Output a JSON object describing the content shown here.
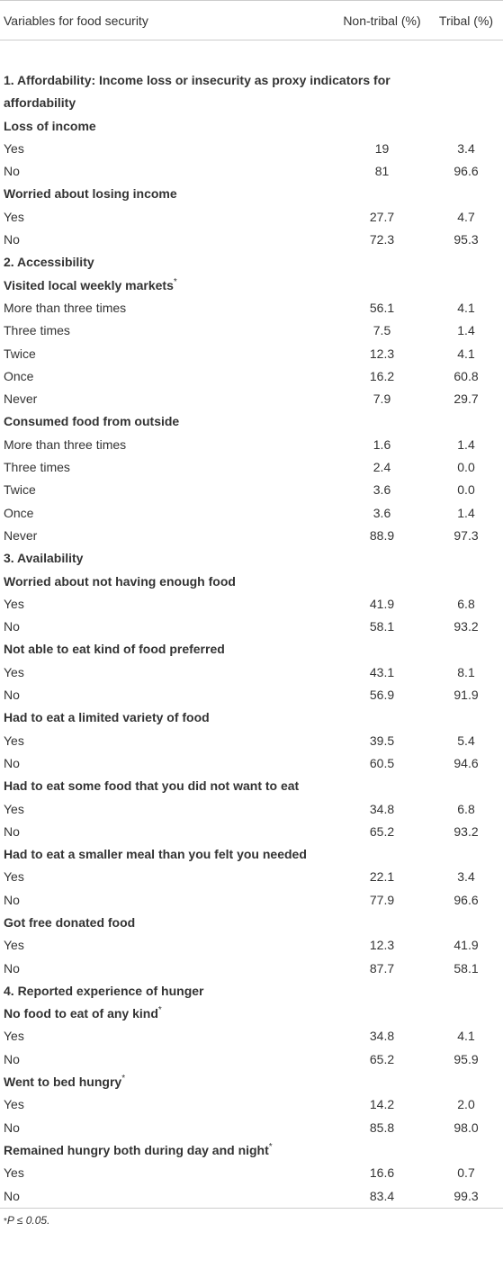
{
  "table": {
    "header": [
      "Variables for food security",
      "Non-tribal (%)",
      "Tribal (%)"
    ],
    "rows": [
      {
        "section": "1. Affordability: Income loss or insecurity as proxy indicators for affordability"
      },
      {
        "heading": "Loss of income"
      },
      {
        "label": "Yes",
        "non_tribal": "19",
        "tribal": "3.4"
      },
      {
        "label": "No",
        "non_tribal": "81",
        "tribal": "96.6"
      },
      {
        "heading": "Worried about losing income"
      },
      {
        "label": "Yes",
        "non_tribal": "27.7",
        "tribal": "4.7"
      },
      {
        "label": "No",
        "non_tribal": "72.3",
        "tribal": "95.3"
      },
      {
        "section": "2. Accessibility"
      },
      {
        "heading": "Visited local weekly markets",
        "sup": "*"
      },
      {
        "label": "More than three times",
        "non_tribal": "56.1",
        "tribal": "4.1"
      },
      {
        "label": "Three times",
        "non_tribal": "7.5",
        "tribal": "1.4"
      },
      {
        "label": "Twice",
        "non_tribal": "12.3",
        "tribal": "4.1"
      },
      {
        "label": "Once",
        "non_tribal": "16.2",
        "tribal": "60.8"
      },
      {
        "label": "Never",
        "non_tribal": "7.9",
        "tribal": "29.7"
      },
      {
        "heading": "Consumed food from outside"
      },
      {
        "label": "More than three times",
        "non_tribal": "1.6",
        "tribal": "1.4"
      },
      {
        "label": "Three times",
        "non_tribal": "2.4",
        "tribal": "0.0"
      },
      {
        "label": "Twice",
        "non_tribal": "3.6",
        "tribal": "0.0"
      },
      {
        "label": "Once",
        "non_tribal": "3.6",
        "tribal": "1.4"
      },
      {
        "label": "Never",
        "non_tribal": "88.9",
        "tribal": "97.3"
      },
      {
        "section": "3. Availability"
      },
      {
        "heading": "Worried about not having enough food"
      },
      {
        "label": "Yes",
        "non_tribal": "41.9",
        "tribal": "6.8"
      },
      {
        "label": "No",
        "non_tribal": "58.1",
        "tribal": "93.2"
      },
      {
        "heading": "Not able to eat kind of food preferred"
      },
      {
        "label": "Yes",
        "non_tribal": "43.1",
        "tribal": "8.1"
      },
      {
        "label": "No",
        "non_tribal": "56.9",
        "tribal": "91.9"
      },
      {
        "heading": "Had to eat a limited variety of food"
      },
      {
        "label": "Yes",
        "non_tribal": "39.5",
        "tribal": "5.4"
      },
      {
        "label": "No",
        "non_tribal": "60.5",
        "tribal": "94.6"
      },
      {
        "heading": "Had to eat some food that you did not want to eat"
      },
      {
        "label": "Yes",
        "non_tribal": "34.8",
        "tribal": "6.8"
      },
      {
        "label": "No",
        "non_tribal": "65.2",
        "tribal": "93.2"
      },
      {
        "heading": "Had to eat a smaller meal than you felt you needed"
      },
      {
        "label": "Yes",
        "non_tribal": "22.1",
        "tribal": "3.4"
      },
      {
        "label": "No",
        "non_tribal": "77.9",
        "tribal": "96.6"
      },
      {
        "heading": "Got free donated food"
      },
      {
        "label": "Yes",
        "non_tribal": "12.3",
        "tribal": "41.9"
      },
      {
        "label": "No",
        "non_tribal": "87.7",
        "tribal": "58.1"
      },
      {
        "section": "4. Reported experience of hunger"
      },
      {
        "heading": "No food to eat of any kind",
        "sup": "*"
      },
      {
        "label": "Yes",
        "non_tribal": "34.8",
        "tribal": "4.1"
      },
      {
        "label": "No",
        "non_tribal": "65.2",
        "tribal": "95.9"
      },
      {
        "heading": "Went to bed hungry",
        "sup": "*"
      },
      {
        "label": "Yes",
        "non_tribal": "14.2",
        "tribal": "2.0"
      },
      {
        "label": "No",
        "non_tribal": "85.8",
        "tribal": "98.0"
      },
      {
        "heading": "Remained hungry both during day and night",
        "sup": "*"
      },
      {
        "label": "Yes",
        "non_tribal": "16.6",
        "tribal": "0.7"
      },
      {
        "label": "No",
        "non_tribal": "83.4",
        "tribal": "99.3"
      }
    ],
    "footnote": {
      "mark": "*",
      "text": "P ≤ 0.05."
    }
  }
}
